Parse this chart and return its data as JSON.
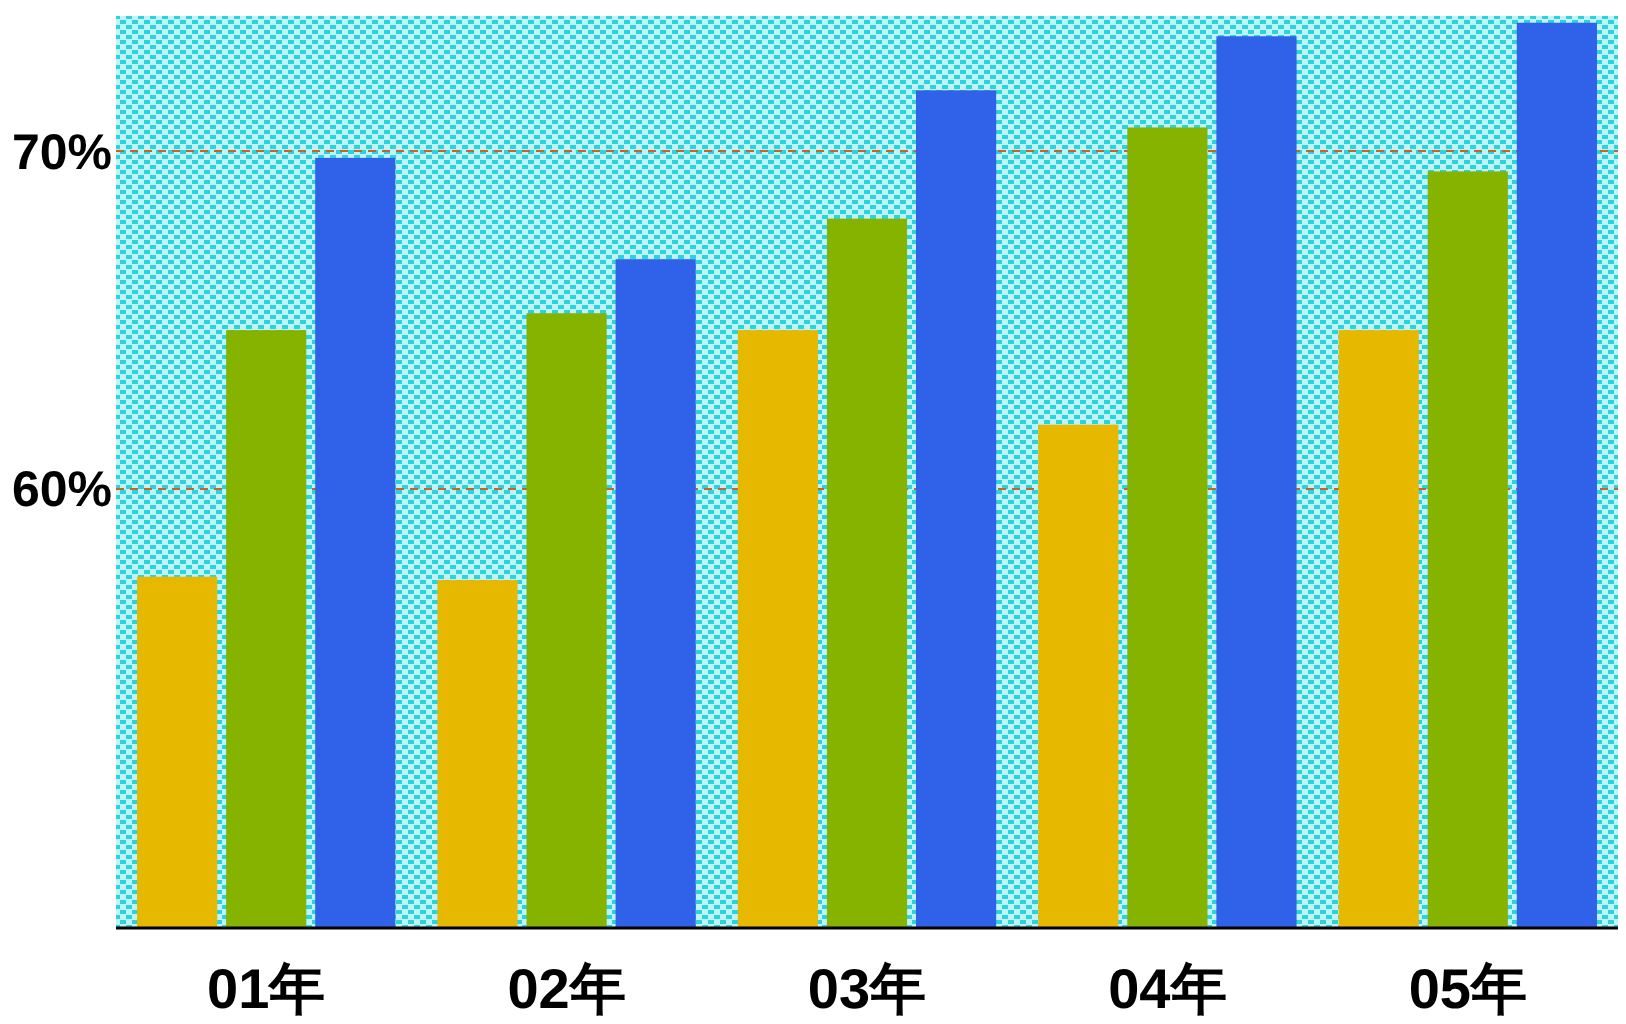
{
  "chart_data": {
    "type": "bar",
    "categories": [
      "01年",
      "02年",
      "03年",
      "04年",
      "05年"
    ],
    "series": [
      {
        "color": "#e6b800",
        "values": [
          57.4,
          57.3,
          64.7,
          61.9,
          64.7
        ]
      },
      {
        "color": "#86b300",
        "values": [
          64.7,
          65.2,
          68.0,
          70.7,
          69.4
        ]
      },
      {
        "color": "#2f62e8",
        "values": [
          69.8,
          66.8,
          71.8,
          73.4,
          73.8
        ]
      }
    ],
    "ylim": [
      47,
      74
    ],
    "yticks": [
      {
        "value": 60,
        "label": "60%"
      },
      {
        "value": 70,
        "label": "70%"
      }
    ],
    "grid": "y"
  }
}
